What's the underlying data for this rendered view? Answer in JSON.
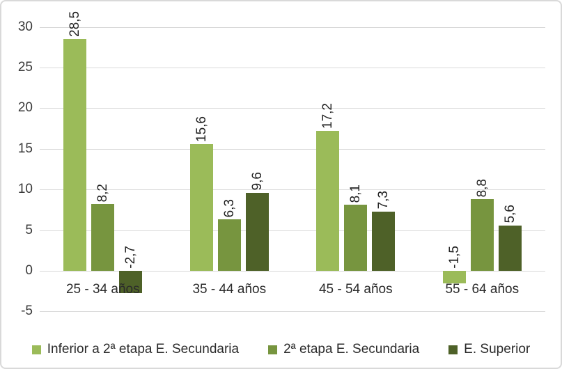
{
  "chart_data": {
    "type": "bar",
    "title": "",
    "xlabel": "",
    "ylabel": "",
    "categories": [
      "25 - 34 años",
      "35 - 44 años",
      "45 - 54 años",
      "55 - 64 años"
    ],
    "series": [
      {
        "name": "Inferior a 2ª etapa E. Secundaria",
        "color": "#9BBB59",
        "values": [
          28.5,
          15.6,
          17.2,
          -1.5
        ],
        "labels": [
          "28,5",
          "15,6",
          "17,2",
          "-1,5"
        ]
      },
      {
        "name": "2ª etapa E. Secundaria",
        "color": "#77953F",
        "values": [
          8.2,
          6.3,
          8.1,
          8.8
        ],
        "labels": [
          "8,2",
          "6,3",
          "8,1",
          "8,8"
        ]
      },
      {
        "name": "E. Superior",
        "color": "#4E6128",
        "values": [
          -2.7,
          9.6,
          7.3,
          5.6
        ],
        "labels": [
          "-2,7",
          "9,6",
          "7,3",
          "5,6"
        ]
      }
    ],
    "yticks": [
      30,
      25,
      20,
      15,
      10,
      5,
      0,
      -5
    ],
    "ylim": [
      -5,
      30
    ],
    "grid": true,
    "legend_position": "bottom",
    "decimal_separator": ","
  },
  "colors": {
    "background": "#FFFFFF",
    "gridline": "#D9D9D9",
    "chart_border": "#D9D9D9",
    "axis_text": "#3A3A3A"
  }
}
